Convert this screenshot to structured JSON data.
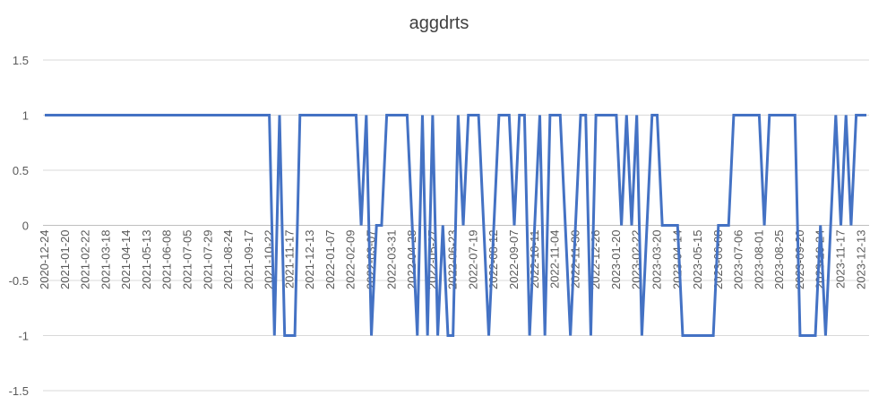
{
  "chart_data": {
    "type": "line",
    "title": "aggdrts",
    "color": "#4472c4",
    "grid": true,
    "ylim": [
      -1.5,
      1.5
    ],
    "yticks": [
      -1.5,
      -1,
      -0.5,
      0,
      0.5,
      1,
      1.5
    ],
    "categories": [
      "2020-12-24",
      null,
      null,
      null,
      "2021-01-20",
      null,
      null,
      null,
      "2021-02-22",
      null,
      null,
      null,
      "2021-03-18",
      null,
      null,
      null,
      "2021-04-14",
      null,
      null,
      null,
      "2021-05-13",
      null,
      null,
      null,
      "2021-06-08",
      null,
      null,
      null,
      "2021-07-05",
      null,
      null,
      null,
      "2021-07-29",
      null,
      null,
      null,
      "2021-08-24",
      null,
      null,
      null,
      "2021-09-17",
      null,
      null,
      null,
      "2021-10-22",
      null,
      null,
      null,
      "2021-11-17",
      null,
      null,
      null,
      "2021-12-13",
      null,
      null,
      null,
      "2022-01-07",
      null,
      null,
      null,
      "2022-02-09",
      null,
      null,
      null,
      "2022-03-07",
      null,
      null,
      null,
      "2022-03-31",
      null,
      null,
      null,
      "2022-04-28",
      null,
      null,
      null,
      "2022-05-27",
      null,
      null,
      null,
      "2022-06-23",
      null,
      null,
      null,
      "2022-07-19",
      null,
      null,
      null,
      "2022-08-12",
      null,
      null,
      null,
      "2022-09-07",
      null,
      null,
      null,
      "2022-10-11",
      null,
      null,
      null,
      "2022-11-04",
      null,
      null,
      null,
      "2022-11-30",
      null,
      null,
      null,
      "2022-12-26",
      null,
      null,
      null,
      "2023-01-20",
      null,
      null,
      null,
      "2023-02-22",
      null,
      null,
      null,
      "2023-03-20",
      null,
      null,
      null,
      "2023-04-14",
      null,
      null,
      null,
      "2023-05-15",
      null,
      null,
      null,
      "2023-06-08",
      null,
      null,
      null,
      "2023-07-06",
      null,
      null,
      null,
      "2023-08-01",
      null,
      null,
      null,
      "2023-08-25",
      null,
      null,
      null,
      "2023-09-20",
      null,
      null,
      null,
      "2023-10-24",
      null,
      null,
      null,
      "2023-11-17",
      null,
      null,
      null,
      "2023-12-13",
      null
    ],
    "values": [
      1,
      1,
      1,
      1,
      1,
      1,
      1,
      1,
      1,
      1,
      1,
      1,
      1,
      1,
      1,
      1,
      1,
      1,
      1,
      1,
      1,
      1,
      1,
      1,
      1,
      1,
      1,
      1,
      1,
      1,
      1,
      1,
      1,
      1,
      1,
      1,
      1,
      1,
      1,
      1,
      1,
      1,
      1,
      1,
      1,
      -1,
      1,
      -1,
      -1,
      -1,
      1,
      1,
      1,
      1,
      1,
      1,
      1,
      1,
      1,
      1,
      1,
      1,
      0,
      1,
      -1,
      0,
      0,
      1,
      1,
      1,
      1,
      1,
      0,
      -1,
      1,
      -1,
      1,
      -1,
      0,
      -1,
      -1,
      1,
      0,
      1,
      1,
      1,
      0,
      -1,
      0,
      1,
      1,
      1,
      0,
      1,
      1,
      -1,
      0,
      1,
      -1,
      1,
      1,
      1,
      0,
      -1,
      0,
      1,
      1,
      -1,
      1,
      1,
      1,
      1,
      1,
      0,
      1,
      0,
      1,
      -1,
      0,
      1,
      1,
      0,
      0,
      0,
      0,
      -1,
      -1,
      -1,
      -1,
      -1,
      -1,
      -1,
      0,
      0,
      0,
      1,
      1,
      1,
      1,
      1,
      1,
      0,
      1,
      1,
      1,
      1,
      1,
      1,
      -1,
      -1,
      -1,
      -1,
      0,
      -1,
      0,
      1,
      0,
      1,
      0,
      1,
      1,
      1
    ]
  }
}
